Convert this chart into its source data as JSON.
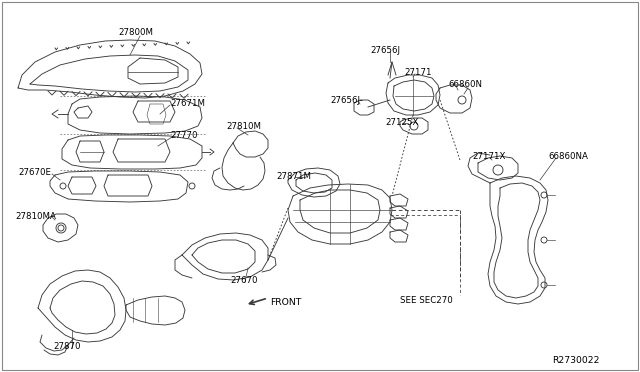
{
  "background_color": "#ffffff",
  "line_color": "#3a3a3a",
  "label_color": "#000000",
  "label_fontsize": 6.2,
  "ref_number": "R2730022",
  "see_sec": "SEE SEC270",
  "front_label": "FRONT",
  "figsize": [
    6.4,
    3.72
  ],
  "dpi": 100
}
